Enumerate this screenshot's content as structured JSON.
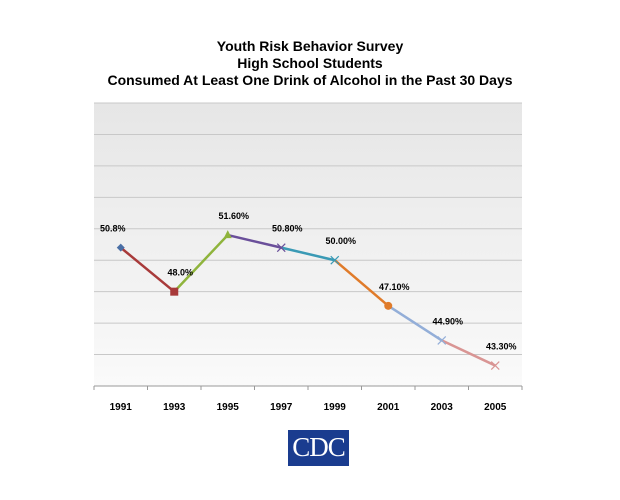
{
  "chart_data": {
    "type": "line",
    "title": [
      "Youth Risk Behavior Survey",
      "High School Students",
      "Consumed At Least One Drink of Alcohol in the Past 30 Days"
    ],
    "categories": [
      "1991",
      "1993",
      "1995",
      "1997",
      "1999",
      "2001",
      "2003",
      "2005"
    ],
    "values": [
      50.8,
      48.0,
      51.6,
      50.8,
      50.0,
      47.1,
      44.9,
      43.3
    ],
    "data_labels": [
      "50.8%",
      "48.0%",
      "51.60%",
      "50.80%",
      "50.00%",
      "47.10%",
      "44.90%",
      "43.30%"
    ],
    "segment_colors": [
      "#a83a3a",
      "#8fb43c",
      "#6a4f9a",
      "#3a9ab5",
      "#e07b2a",
      "#93aed8",
      "#d99594"
    ],
    "marker_colors": [
      "#4a6fa5",
      "#a83a3a",
      "#8fb43c",
      "#6a4f9a",
      "#3a9ab5",
      "#e07b2a",
      "#93aed8",
      "#d99594"
    ],
    "ylim": [
      42,
      60
    ],
    "grid": true,
    "grid_step": 2,
    "y_tick_labels": false,
    "legend": "none"
  },
  "logo": {
    "text": "CDC",
    "color": "#1a3c8f"
  }
}
